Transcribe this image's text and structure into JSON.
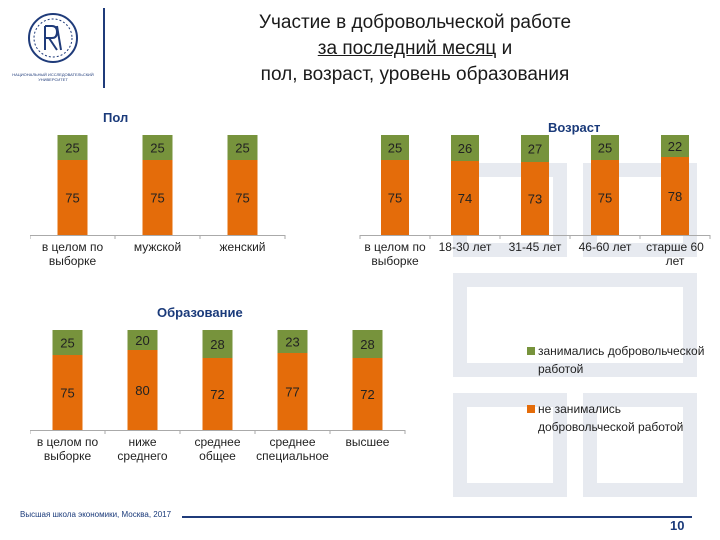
{
  "header": {
    "title_lines": [
      "Участие в добровольческой работе",
      "за последний месяц",
      " и",
      "пол, возраст, уровень образования"
    ],
    "logo_caption": [
      "НАЦИОНАЛЬНЫЙ ИССЛЕДОВАТЕЛЬСКИЙ",
      "УНИВЕРСИТЕТ"
    ]
  },
  "colors": {
    "volunteered": "#77933c",
    "not_volunteered": "#e46c0a",
    "brand": "#1f3b7a"
  },
  "chart_data": [
    {
      "type": "bar",
      "stacked": true,
      "percent": true,
      "title": "Пол",
      "categories": [
        "в целом по выборке",
        "мужской",
        "женский"
      ],
      "series": [
        {
          "name": "не занимались добровольческой работой",
          "values": [
            75,
            75,
            75
          ]
        },
        {
          "name": "занимались добровольческой работой",
          "values": [
            25,
            25,
            25
          ]
        }
      ]
    },
    {
      "type": "bar",
      "stacked": true,
      "percent": true,
      "title": "Возраст",
      "categories": [
        "в целом по выборке",
        "18-30 лет",
        "31-45 лет",
        "46-60 лет",
        "старше 60 лет"
      ],
      "series": [
        {
          "name": "не занимались добровольческой работой",
          "values": [
            75,
            74,
            73,
            75,
            78
          ]
        },
        {
          "name": "занимались добровольческой работой",
          "values": [
            25,
            26,
            27,
            25,
            22
          ]
        }
      ]
    },
    {
      "type": "bar",
      "stacked": true,
      "percent": true,
      "title": "Образование",
      "categories": [
        "в целом по выборке",
        "ниже среднего",
        "среднее общее",
        "среднее специальное",
        "высшее"
      ],
      "series": [
        {
          "name": "не занимались добровольческой работой",
          "values": [
            75,
            80,
            72,
            77,
            72
          ]
        },
        {
          "name": "занимались добровольческой работой",
          "values": [
            25,
            20,
            28,
            23,
            28
          ]
        }
      ]
    }
  ],
  "legend": [
    {
      "label": "занимались добровольческой работой",
      "color": "#77933c"
    },
    {
      "label": "не занимались добровольческой работой",
      "color": "#e46c0a"
    }
  ],
  "footer": {
    "text": "Высшая школа экономики, Москва, 2017",
    "page_number": "10"
  }
}
